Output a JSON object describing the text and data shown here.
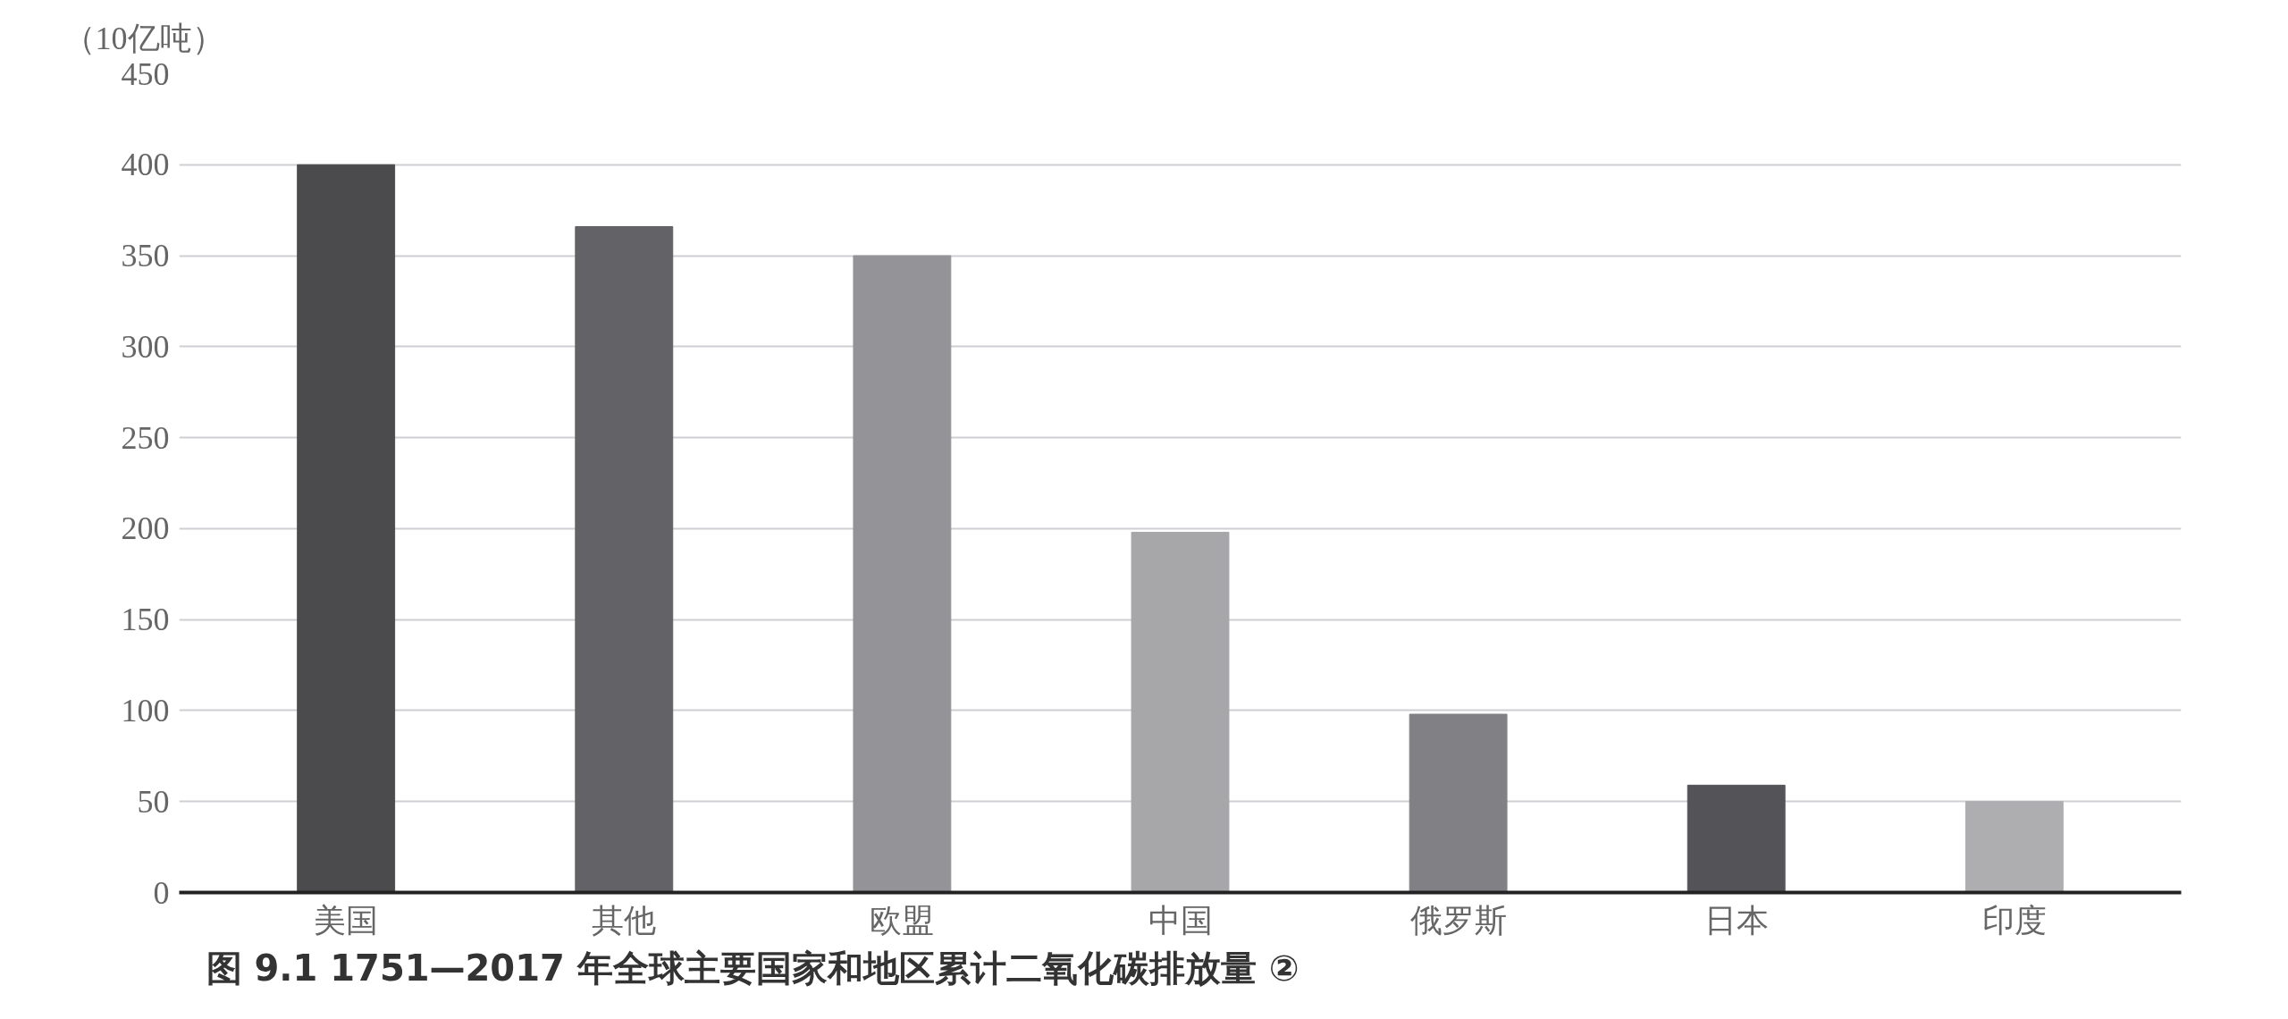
{
  "chart_data": {
    "type": "bar",
    "title": "图 9.1   1751—2017 年全球主要国家和地区累计二氧化碳排放量 ②",
    "ylabel": "（10亿吨）",
    "categories": [
      "美国",
      "其他",
      "欧盟",
      "中国",
      "俄罗斯",
      "日本",
      "印度"
    ],
    "values": [
      400,
      366,
      350,
      198,
      98,
      59,
      50
    ],
    "colors": [
      "#4b4b4d",
      "#636266",
      "#949498",
      "#a7a7aa",
      "#818185",
      "#545458",
      "#aeaeb1"
    ],
    "ylim": [
      0,
      450
    ],
    "yticks": [
      0,
      50,
      100,
      150,
      200,
      250,
      300,
      350,
      400,
      450
    ],
    "grid": "y"
  }
}
